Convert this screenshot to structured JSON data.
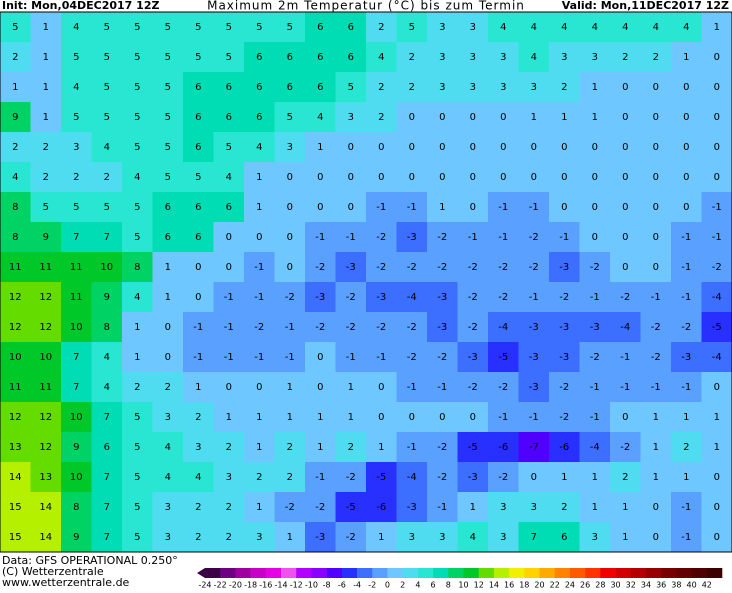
{
  "header": {
    "init": "Init: Mon,04DEC2017 12Z",
    "title": "Maximum 2m Temperatur (°C) bis zum Termin",
    "valid": "Valid: Mon,11DEC2017 12Z"
  },
  "footer": {
    "data": "Data: GFS OPERATIONAL 0.250°",
    "copyright": "(C) Wetterzentrale",
    "url": "www.wetterzentrale.de"
  },
  "colorbar": {
    "labels": [
      -24,
      -22,
      -20,
      -18,
      -16,
      -14,
      -12,
      -10,
      -8,
      -6,
      -4,
      -2,
      0,
      2,
      4,
      6,
      8,
      10,
      12,
      14,
      16,
      18,
      20,
      22,
      24,
      26,
      28,
      30,
      32,
      34,
      36,
      38,
      40,
      42
    ],
    "colors": [
      "#3c0046",
      "#6e0082",
      "#a000a0",
      "#c800c8",
      "#e600e6",
      "#f050f0",
      "#b400ff",
      "#8c00ff",
      "#5000ff",
      "#2830ff",
      "#3c6eff",
      "#5aa0ff",
      "#6ec8ff",
      "#50dcf0",
      "#28e6d2",
      "#00dcb4",
      "#00d264",
      "#00c828",
      "#64dc00",
      "#b4f000",
      "#f0f000",
      "#ffd200",
      "#ffaa00",
      "#ff8200",
      "#ff5a00",
      "#ff3200",
      "#f00000",
      "#d20000",
      "#b40000",
      "#960000",
      "#780000",
      "#640000",
      "#500000",
      "#3c0000"
    ]
  },
  "map": {
    "rows": [
      [
        5,
        1,
        4,
        5,
        5,
        5,
        5,
        5,
        5,
        5,
        6,
        6,
        2,
        5,
        3,
        3,
        4,
        4,
        4,
        4,
        4,
        4,
        4,
        1
      ],
      [
        2,
        1,
        5,
        5,
        5,
        5,
        5,
        5,
        6,
        6,
        6,
        6,
        4,
        2,
        3,
        3,
        3,
        4,
        3,
        3,
        2,
        2,
        1,
        0
      ],
      [
        1,
        1,
        4,
        5,
        5,
        5,
        6,
        6,
        6,
        6,
        6,
        5,
        2,
        2,
        3,
        3,
        3,
        3,
        2,
        1,
        0,
        0,
        0,
        0
      ],
      [
        9,
        1,
        5,
        5,
        5,
        5,
        6,
        6,
        6,
        5,
        4,
        3,
        2,
        0,
        0,
        0,
        0,
        1,
        1,
        1,
        0,
        0,
        0,
        0
      ],
      [
        2,
        2,
        3,
        4,
        5,
        5,
        6,
        5,
        4,
        3,
        1,
        0,
        0,
        0,
        0,
        0,
        0,
        0,
        0,
        0,
        0,
        0,
        0,
        0
      ],
      [
        4,
        2,
        2,
        2,
        4,
        5,
        5,
        4,
        1,
        0,
        0,
        0,
        0,
        0,
        0,
        0,
        0,
        0,
        0,
        0,
        0,
        0,
        0,
        0
      ],
      [
        8,
        5,
        5,
        5,
        5,
        6,
        6,
        6,
        1,
        0,
        0,
        0,
        -1,
        -1,
        1,
        0,
        -1,
        -1,
        0,
        0,
        0,
        0,
        0,
        -1
      ],
      [
        8,
        9,
        7,
        7,
        5,
        6,
        6,
        0,
        0,
        0,
        -1,
        -1,
        -2,
        -3,
        -2,
        -1,
        -1,
        -2,
        -1,
        0,
        0,
        0,
        -1,
        -1
      ],
      [
        11,
        11,
        11,
        10,
        8,
        1,
        0,
        0,
        -1,
        0,
        -2,
        -3,
        -2,
        -2,
        -2,
        -2,
        -2,
        -2,
        -3,
        -2,
        0,
        0,
        -1,
        -2
      ],
      [
        12,
        12,
        11,
        9,
        4,
        1,
        0,
        -1,
        -1,
        -2,
        -3,
        -2,
        -3,
        -4,
        -3,
        -2,
        -2,
        -1,
        -2,
        -1,
        -2,
        -1,
        -1,
        -4
      ],
      [
        12,
        12,
        10,
        8,
        1,
        0,
        -1,
        -1,
        -2,
        -1,
        -2,
        -2,
        -2,
        -2,
        -3,
        -2,
        -4,
        -3,
        -3,
        -3,
        -4,
        -2,
        -2,
        -5
      ],
      [
        10,
        10,
        7,
        4,
        1,
        0,
        -1,
        -1,
        -1,
        -1,
        0,
        -1,
        -1,
        -2,
        -2,
        -3,
        -5,
        -3,
        -3,
        -2,
        -1,
        -2,
        -3,
        -4
      ],
      [
        11,
        11,
        7,
        4,
        2,
        2,
        1,
        0,
        0,
        1,
        0,
        1,
        0,
        -1,
        -1,
        -2,
        -2,
        -3,
        -2,
        -1,
        -1,
        -1,
        -1,
        0
      ],
      [
        12,
        12,
        10,
        7,
        5,
        3,
        2,
        1,
        1,
        1,
        1,
        1,
        0,
        0,
        0,
        0,
        -1,
        -1,
        -2,
        -1,
        0,
        1,
        1,
        1
      ],
      [
        13,
        12,
        9,
        6,
        5,
        4,
        3,
        2,
        1,
        2,
        1,
        2,
        1,
        -1,
        -2,
        -5,
        -6,
        -7,
        -6,
        -4,
        -2,
        1,
        2,
        1
      ],
      [
        14,
        13,
        10,
        7,
        5,
        4,
        4,
        3,
        2,
        2,
        -1,
        -2,
        -5,
        -4,
        -2,
        -3,
        -2,
        0,
        1,
        1,
        2,
        1,
        1,
        0
      ],
      [
        15,
        14,
        8,
        7,
        5,
        3,
        2,
        2,
        1,
        -2,
        -2,
        -5,
        -6,
        -3,
        -1,
        1,
        3,
        3,
        2,
        1,
        1,
        0,
        -1,
        0
      ],
      [
        15,
        14,
        9,
        7,
        5,
        3,
        2,
        2,
        3,
        1,
        -3,
        -2,
        1,
        3,
        3,
        4,
        3,
        7,
        6,
        3,
        1,
        0,
        -1,
        0
      ]
    ]
  }
}
